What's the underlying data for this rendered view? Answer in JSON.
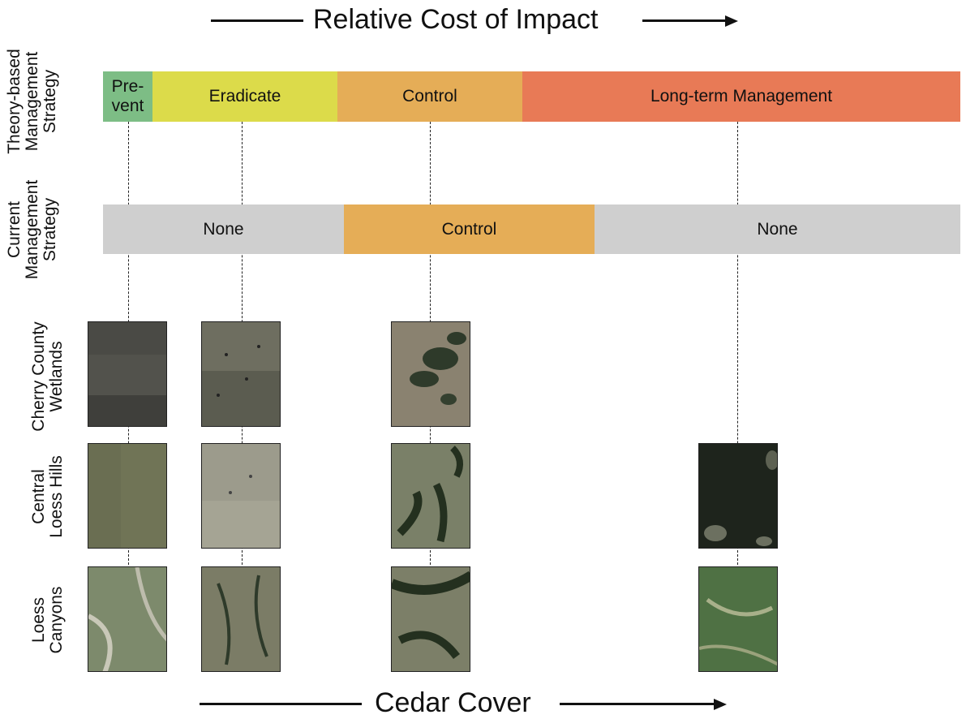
{
  "top_axis": {
    "label": "Relative Cost of Impact"
  },
  "bottom_axis": {
    "label": "Cedar Cover"
  },
  "row_labels": {
    "theory": [
      "Theory-based",
      "Management",
      "Strategy"
    ],
    "current": [
      "Current",
      "Management",
      "Strategy"
    ],
    "cherry": [
      "Cherry County",
      "Wetlands"
    ],
    "central": [
      "Central",
      "Loess Hills"
    ],
    "canyons": [
      "Loess",
      "Canyons"
    ]
  },
  "theory_bar": {
    "segments": [
      {
        "label_line1": "Pre-",
        "label_line2": "vent",
        "color": "#7dbd85"
      },
      {
        "label": "Eradicate",
        "color": "#dcdb4a"
      },
      {
        "label": "Control",
        "color": "#e5ad57"
      },
      {
        "label": "Long-term Management",
        "color": "#e87a56"
      }
    ]
  },
  "current_bar": {
    "segments": [
      {
        "label": "None",
        "color": "#cfcfcf"
      },
      {
        "label": "Control",
        "color": "#e5ad57"
      },
      {
        "label": "None",
        "color": "#cfcfcf"
      }
    ]
  },
  "photos": {
    "icons": [
      "aerial-image"
    ]
  }
}
